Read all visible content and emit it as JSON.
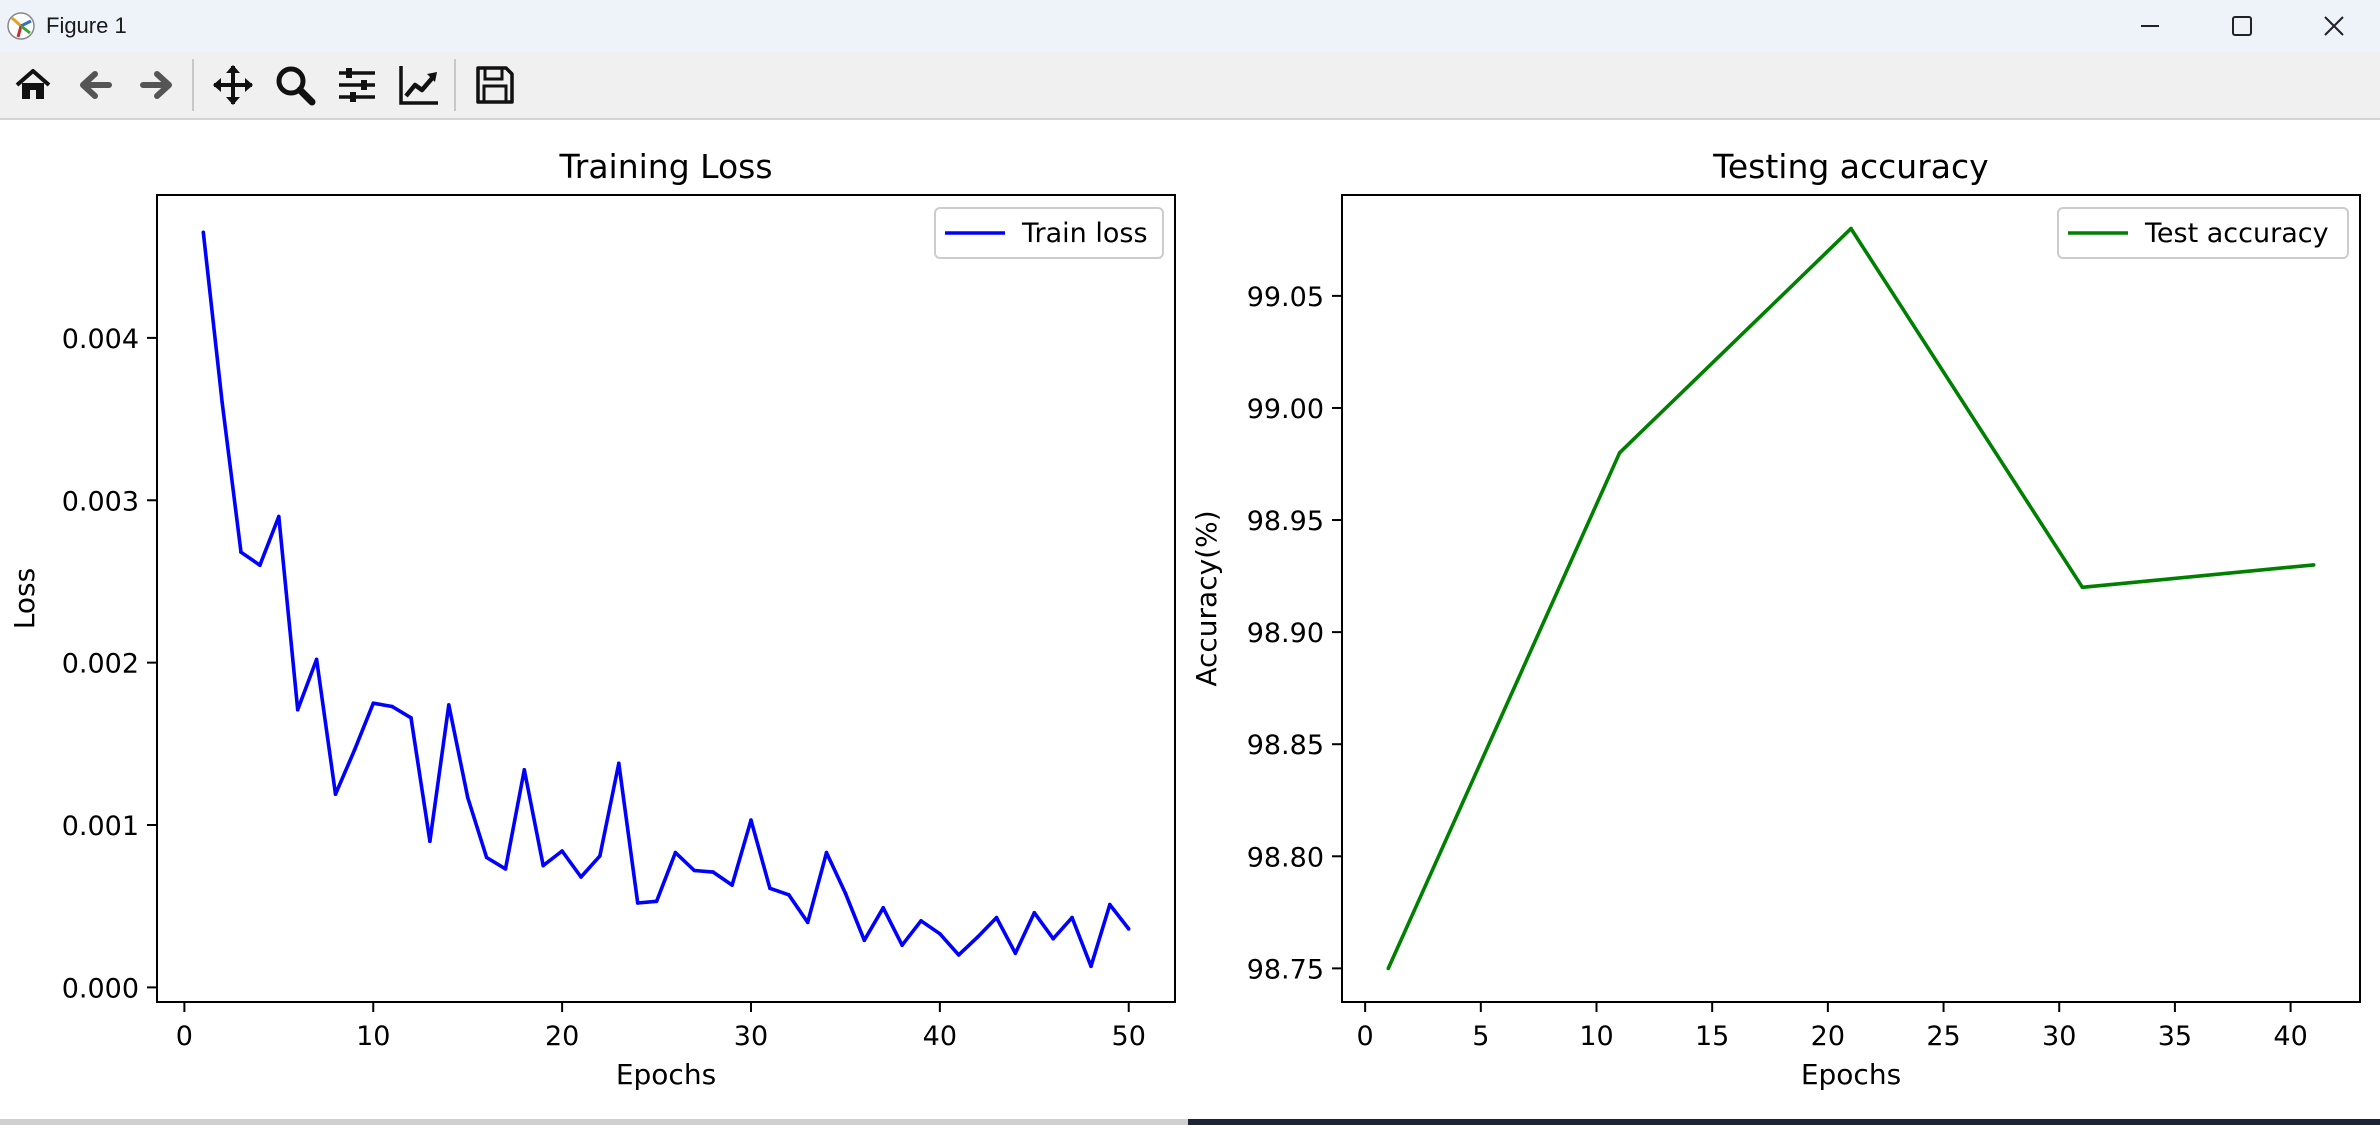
{
  "window": {
    "title": "Figure 1",
    "controls": [
      "minimize-icon",
      "maximize-icon",
      "close-icon"
    ]
  },
  "toolbar": {
    "buttons": [
      "home-icon",
      "back-icon",
      "forward-icon",
      "pan-icon",
      "zoom-icon",
      "configure-subplots-icon",
      "edit-axis-icon",
      "save-icon"
    ]
  },
  "colors": {
    "train": "#0000ff",
    "test": "#008000",
    "titlebar": "#eef2f9",
    "toolbar": "#f0f0f0"
  },
  "chart_data": [
    {
      "type": "line",
      "title": "Training Loss",
      "xlabel": "Epochs",
      "ylabel": "Loss",
      "xlim": [
        -1.45,
        52.45
      ],
      "ylim": [
        -9e-05,
        0.00488
      ],
      "xticks": [
        0,
        10,
        20,
        30,
        40,
        50
      ],
      "yticks": [
        0.0,
        0.001,
        0.002,
        0.003,
        0.004
      ],
      "ytick_labels": [
        "0.000",
        "0.001",
        "0.002",
        "0.003",
        "0.004"
      ],
      "legend": "top-right",
      "series": [
        {
          "name": "Train loss",
          "color": "#0000ff",
          "x": [
            1,
            2,
            3,
            4,
            5,
            6,
            7,
            8,
            9,
            10,
            11,
            12,
            13,
            14,
            15,
            16,
            17,
            18,
            19,
            20,
            21,
            22,
            23,
            24,
            25,
            26,
            27,
            28,
            29,
            30,
            31,
            32,
            33,
            34,
            35,
            36,
            37,
            38,
            39,
            40,
            41,
            42,
            43,
            44,
            45,
            46,
            47,
            48,
            49,
            50
          ],
          "values": [
            0.00465,
            0.0036,
            0.00268,
            0.0026,
            0.0029,
            0.00171,
            0.00202,
            0.00119,
            0.00146,
            0.00175,
            0.00173,
            0.00166,
            0.0009,
            0.00174,
            0.00117,
            0.0008,
            0.00073,
            0.00134,
            0.00075,
            0.00084,
            0.00068,
            0.00081,
            0.00138,
            0.00052,
            0.00053,
            0.00083,
            0.00072,
            0.00071,
            0.00063,
            0.00103,
            0.00061,
            0.00057,
            0.0004,
            0.00083,
            0.00058,
            0.00029,
            0.00049,
            0.00026,
            0.00041,
            0.00033,
            0.0002,
            0.00031,
            0.00043,
            0.00021,
            0.00046,
            0.0003,
            0.00043,
            0.00013,
            0.00051,
            0.00036
          ]
        }
      ]
    },
    {
      "type": "line",
      "title": "Testing accuracy",
      "xlabel": "Epochs",
      "ylabel": "Accuracy(%)",
      "xlim": [
        -1.0,
        43.0
      ],
      "ylim": [
        98.735,
        99.095
      ],
      "xticks": [
        0,
        5,
        10,
        15,
        20,
        25,
        30,
        35,
        40
      ],
      "yticks": [
        98.75,
        98.8,
        98.85,
        98.9,
        98.95,
        99.0,
        99.05
      ],
      "ytick_labels": [
        "98.75",
        "98.80",
        "98.85",
        "98.90",
        "98.95",
        "99.00",
        "99.05"
      ],
      "legend": "top-right",
      "series": [
        {
          "name": "Test accuracy",
          "color": "#008000",
          "x": [
            1,
            11,
            21,
            31,
            41
          ],
          "values": [
            98.75,
            98.98,
            99.08,
            98.92,
            98.93
          ]
        }
      ]
    }
  ]
}
